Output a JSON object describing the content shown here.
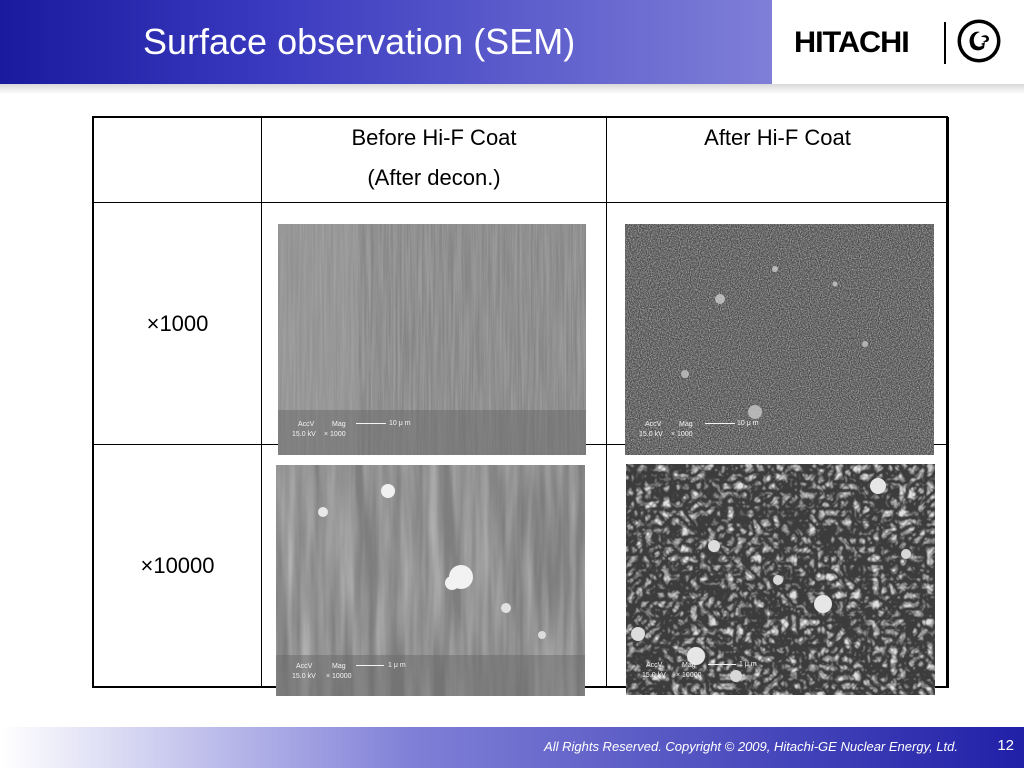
{
  "header": {
    "title": "Surface observation (SEM)",
    "brand": "HITACHI",
    "partner_logo": "ge-monogram-icon",
    "gradient_start": "#1a1a9e",
    "gradient_end": "#7f7fd8"
  },
  "table": {
    "columns": [
      {
        "lines": [
          "Before Hi-F Coat",
          "(After decon.)"
        ]
      },
      {
        "lines": [
          "After Hi-F Coat"
        ]
      }
    ],
    "rows": [
      {
        "label": "×1000"
      },
      {
        "label": "×10000"
      }
    ]
  },
  "micrographs": {
    "before_1000": {
      "accv": "AccV",
      "mag": "Mag",
      "kv": "15.0 kV",
      "mag_value": "× 1000",
      "scale": "10 μ m"
    },
    "after_1000": {
      "accv": "AccV",
      "mag": "Mag",
      "kv": "15.0 kV",
      "mag_value": "× 1000",
      "scale": "10 μ m"
    },
    "before_10000": {
      "accv": "AccV",
      "mag": "Mag",
      "kv": "15.0 kV",
      "mag_value": "× 10000",
      "scale": "1 μ m"
    },
    "after_10000": {
      "accv": "AccV",
      "mag": "Mag",
      "kv": "15.0 kV",
      "mag_value": "× 10000",
      "scale": "1 μ m"
    }
  },
  "footer": {
    "copyright": "All Rights Reserved. Copyright © 2009, Hitachi-GE Nuclear Energy, Ltd.",
    "page_number": "12"
  }
}
